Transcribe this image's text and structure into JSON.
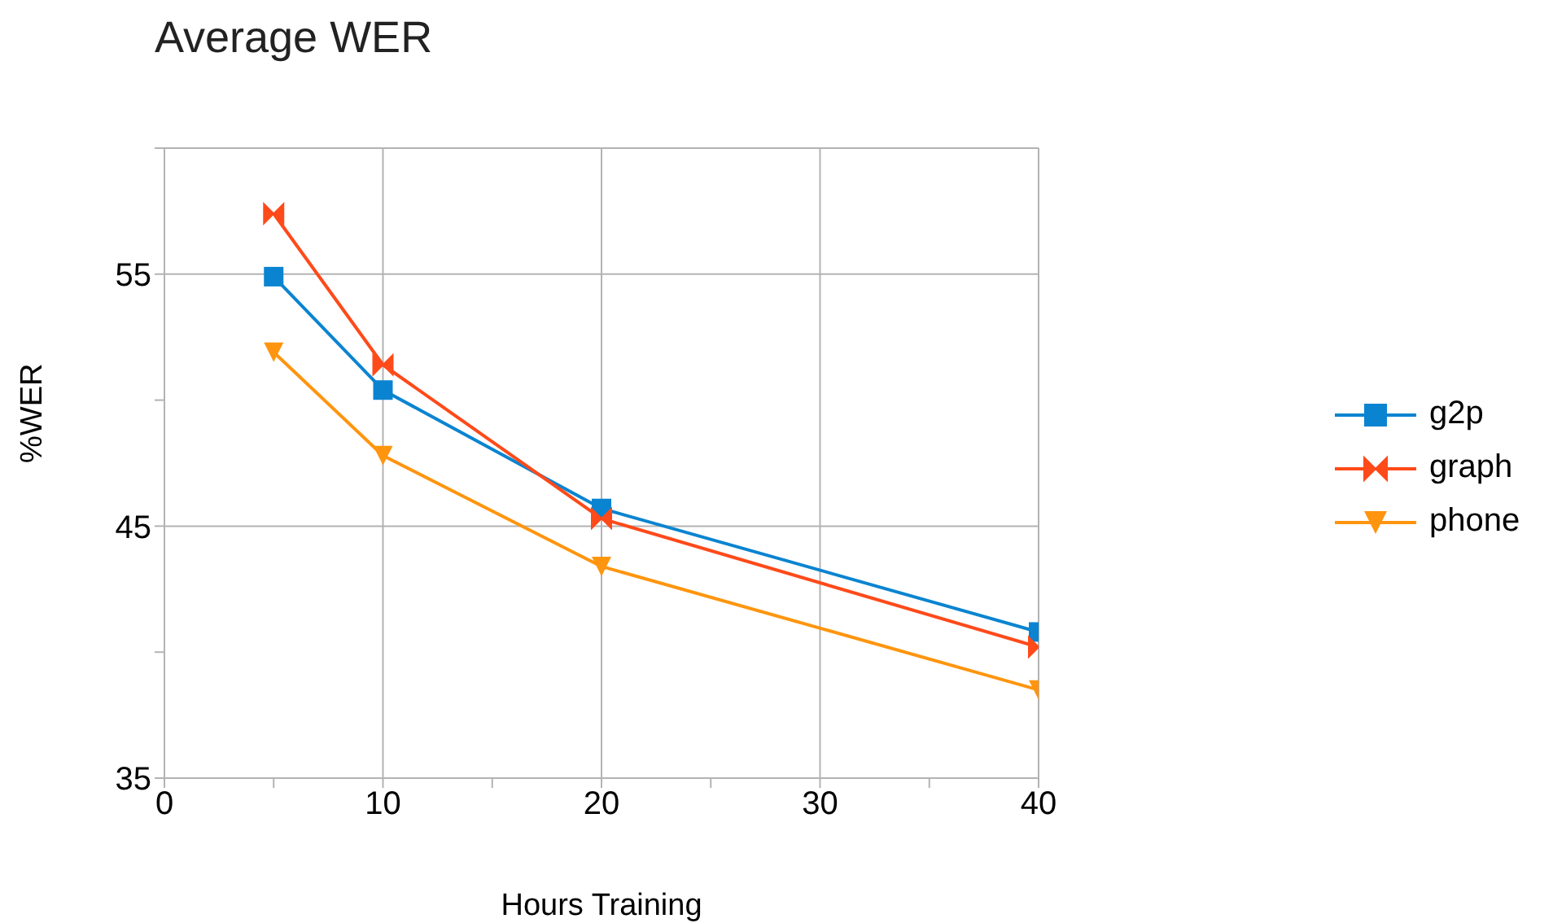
{
  "chart_data": {
    "type": "line",
    "title": "Average WER",
    "xlabel": "Hours Training",
    "ylabel": "%WER",
    "x": [
      5,
      10,
      20,
      40
    ],
    "series": [
      {
        "name": "g2p",
        "color": "#0a84d0",
        "values": [
          54.9,
          50.4,
          45.7,
          40.8
        ],
        "marker": "square"
      },
      {
        "name": "graph",
        "color": "#ff4a1a",
        "values": [
          57.4,
          51.4,
          45.3,
          40.2
        ],
        "marker": "cross"
      },
      {
        "name": "phone",
        "color": "#ff950e",
        "values": [
          51.9,
          47.8,
          43.4,
          38.5
        ],
        "marker": "triangle"
      }
    ],
    "xlim": [
      0,
      40
    ],
    "xticks": [
      0,
      {
        "value": 5,
        "label": null
      },
      10,
      {
        "value": 15,
        "label": null
      },
      20,
      {
        "value": 25,
        "label": null
      },
      30,
      {
        "value": 35,
        "label": null
      },
      40
    ],
    "ylim": [
      35,
      60
    ],
    "yticks": [
      35,
      {
        "value": 40,
        "label": null
      },
      45,
      {
        "value": 50,
        "label": null
      },
      55,
      {
        "value": 60,
        "label": null
      }
    ],
    "grid": true,
    "legend": "right",
    "line_style": "solid"
  }
}
